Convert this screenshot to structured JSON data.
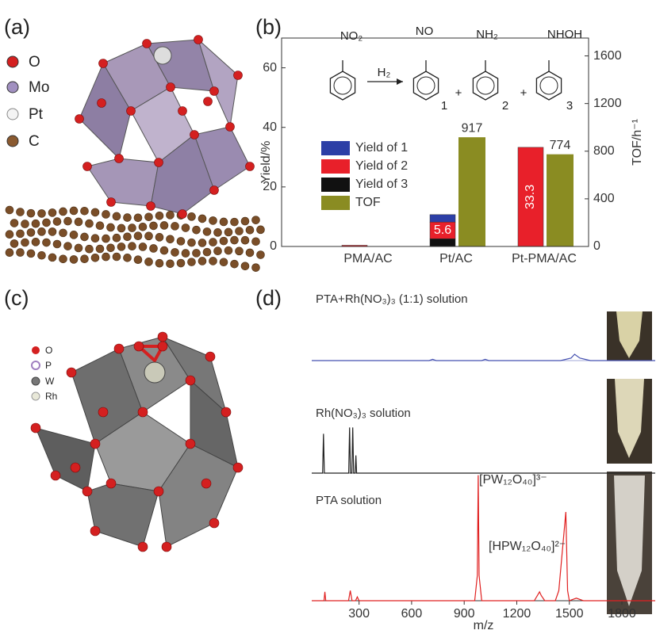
{
  "panel_labels": [
    "(a)",
    "(b)",
    "(c)",
    "(d)"
  ],
  "structure_a_legend": [
    "O",
    "Mo",
    "Pt",
    "C"
  ],
  "structure_c_legend": [
    "O",
    "P",
    "W",
    "Rh"
  ],
  "chart_data": [
    {
      "type": "bar",
      "ylabel": "Yield/%",
      "y2label": "TOF/h⁻¹",
      "categories": [
        "PMA/AC",
        "Pt/AC",
        "Pt-PMA/AC"
      ],
      "series": [
        {
          "name": "Yield of 1",
          "color": "#2c3fa6",
          "values": [
            0,
            2.5,
            0
          ]
        },
        {
          "name": "Yield of 2",
          "color": "#e8202a",
          "values": [
            0.4,
            5.6,
            33.3
          ],
          "value_labels": [
            null,
            "5.6",
            "33.3"
          ]
        },
        {
          "name": "Yield of 3",
          "color": "#111111",
          "values": [
            0,
            2.6,
            0
          ]
        },
        {
          "name": "TOF",
          "color": "#8a8c22",
          "axis": "y2",
          "values": [
            null,
            917,
            774
          ],
          "value_labels": [
            null,
            "917",
            "774"
          ]
        }
      ],
      "ylim": [
        0,
        70
      ],
      "yticks": [
        0,
        20,
        40,
        60
      ],
      "y2lim": [
        0,
        1750
      ],
      "y2ticks": [
        0,
        400,
        800,
        1200,
        1600
      ],
      "legend": "left",
      "grid": false,
      "scheme": [
        "NO₂",
        "H₂",
        "NO",
        "1",
        "+",
        "NH₂",
        "2",
        "+",
        "NHOH",
        "3"
      ]
    },
    {
      "type": "line",
      "xlabel": "m/z",
      "xlim": [
        30,
        1990
      ],
      "xticks": [
        300,
        600,
        900,
        1200,
        1500,
        1800
      ],
      "series": [
        {
          "name": "PTA+Rh(NO₃)₃ (1:1) solution",
          "color": "#4450b0",
          "x": [
            30,
            700,
            720,
            740,
            1000,
            1020,
            1040,
            1450,
            1510,
            1530,
            1560,
            1620,
            1990
          ],
          "values": [
            0,
            0,
            1,
            0,
            0,
            1,
            0,
            0,
            2,
            5,
            2,
            0,
            0
          ]
        },
        {
          "name": "Rh(NO₃)₃ solution",
          "color": "#222222",
          "x": [
            30,
            92,
            97,
            102,
            241,
            246,
            251,
            259,
            264,
            269,
            278,
            282,
            286,
            1990
          ],
          "values": [
            0,
            0,
            31,
            0,
            0,
            36,
            0,
            0,
            36,
            0,
            0,
            14,
            0,
            0
          ]
        },
        {
          "name": "PTA solution",
          "color": "#e02020",
          "x": [
            30,
            100,
            105,
            110,
            240,
            250,
            260,
            280,
            290,
            300,
            960,
            975,
            980,
            985,
            1000,
            1300,
            1330,
            1340,
            1360,
            1420,
            1440,
            1480,
            1490,
            1500,
            1540,
            1580,
            1990
          ],
          "values": [
            0,
            0,
            7,
            0,
            0,
            8,
            0,
            0,
            3,
            0,
            0,
            20,
            99,
            20,
            0,
            0,
            7,
            4,
            0,
            0,
            8,
            70,
            8,
            0,
            2,
            0,
            0
          ]
        }
      ],
      "annotations": [
        "[PW₁₂O₄₀]³⁻",
        "[HPW₁₂O₄₀]²⁻"
      ]
    }
  ]
}
